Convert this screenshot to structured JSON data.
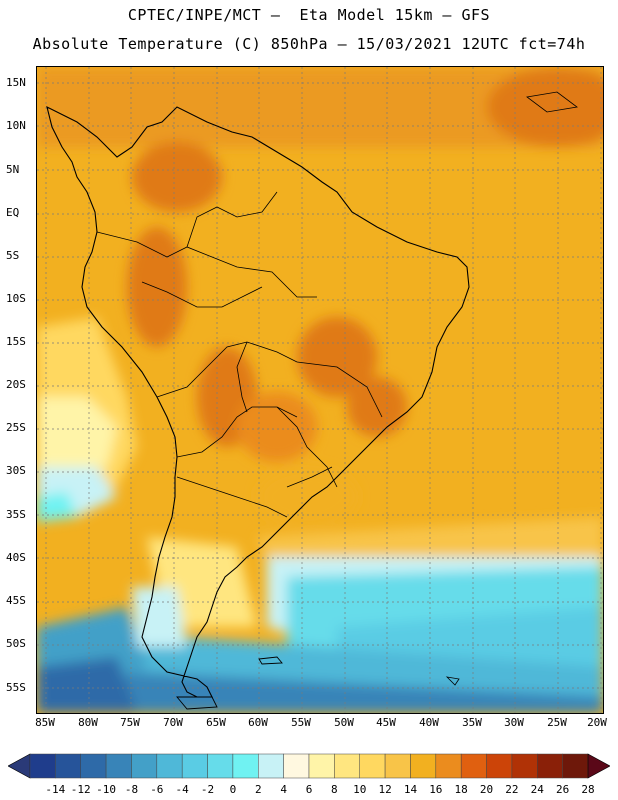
{
  "title_line1": "CPTEC/INPE/MCT –  Eta Model 15km – GFS",
  "title_line2": "Absolute Temperature (C) 850hPa – 15/03/2021 12UTC fct=74h",
  "lat_labels": [
    "15N",
    "10N",
    "5N",
    "EQ",
    "5S",
    "10S",
    "15S",
    "20S",
    "25S",
    "30S",
    "35S",
    "40S",
    "45S",
    "50S",
    "55S"
  ],
  "lon_labels": [
    "85W",
    "80W",
    "75W",
    "70W",
    "65W",
    "60W",
    "55W",
    "50W",
    "45W",
    "40W",
    "35W",
    "30W",
    "25W",
    "20W"
  ],
  "colorbar": {
    "labels": [
      "-14",
      "-12",
      "-10",
      "-8",
      "-6",
      "-4",
      "-2",
      "0",
      "2",
      "4",
      "6",
      "8",
      "10",
      "12",
      "14",
      "16",
      "18",
      "20",
      "22",
      "24",
      "26",
      "28"
    ],
    "colors": [
      "#1f3d8c",
      "#26549a",
      "#2e6aa8",
      "#3884b8",
      "#43a0c8",
      "#4fb8d8",
      "#5acce4",
      "#66dcea",
      "#70f2f2",
      "#c8f2f6",
      "#fff8e0",
      "#fff4a8",
      "#ffe680",
      "#ffd860",
      "#f8c448",
      "#f2b020",
      "#eb8c1e",
      "#e06010",
      "#cc4408",
      "#b03206",
      "#8a2008",
      "#6e180a"
    ],
    "under_color": "#2a3a78",
    "over_color": "#5a0818"
  }
}
